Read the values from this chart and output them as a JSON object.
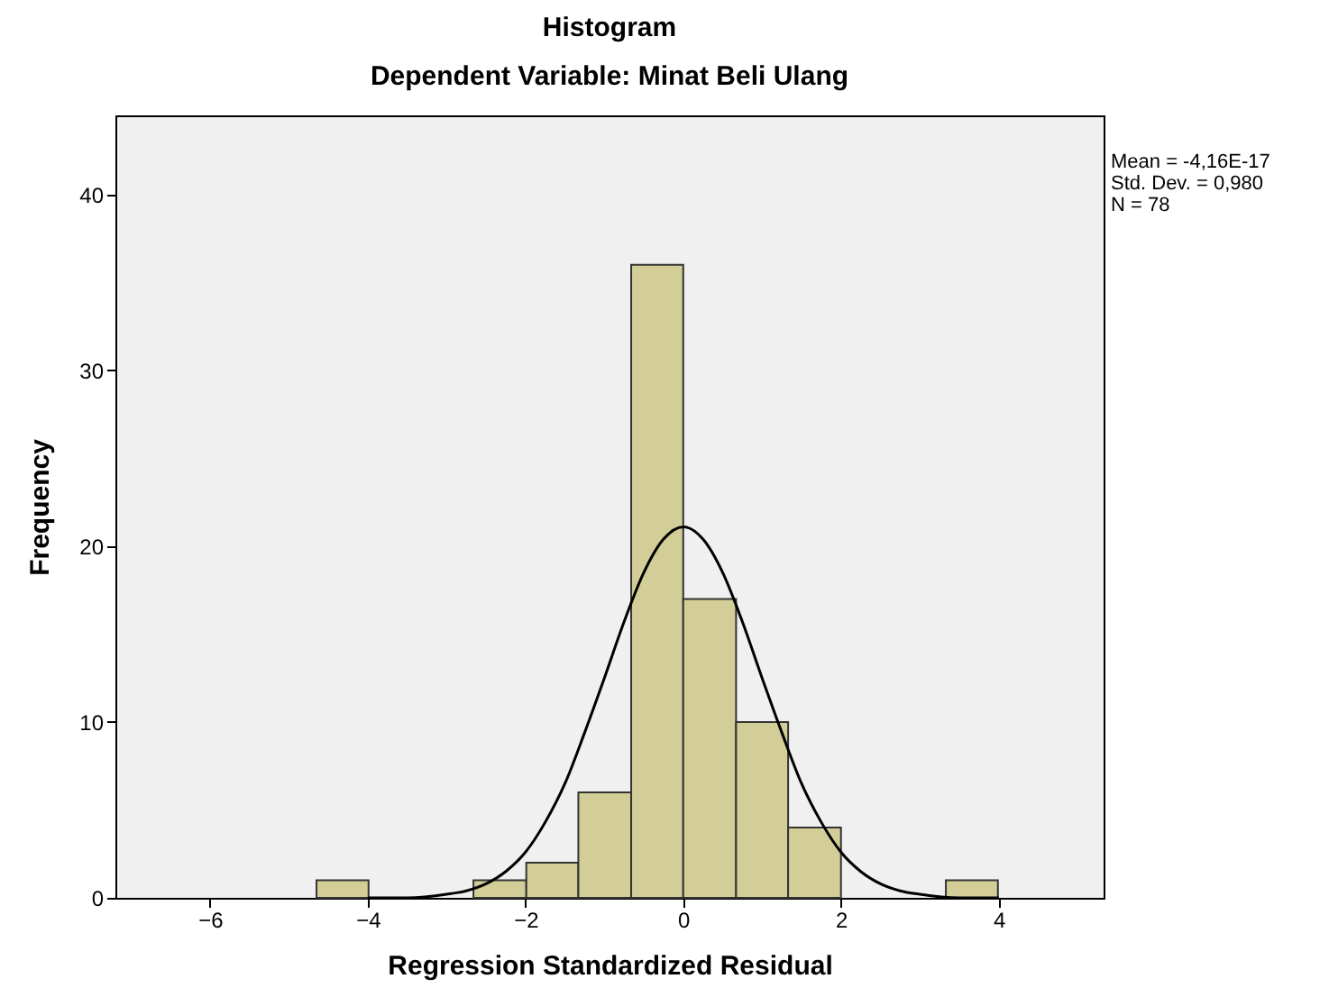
{
  "chart_data": {
    "type": "histogram",
    "title": "Histogram",
    "subtitle": "Dependent Variable: Minat Beli Ulang",
    "xlabel": "Regression Standardized Residual",
    "ylabel": "Frequency",
    "annotations": [
      "Mean = -4,16E-17",
      "Std. Dev. = 0,980",
      "N = 78"
    ],
    "bins": [
      -4.65,
      -3.99,
      -2.66,
      -1.99,
      -1.33,
      -0.66,
      0.0,
      0.67,
      1.33,
      2.0,
      3.33,
      3.99
    ],
    "values": [
      1,
      0,
      1,
      2,
      6,
      36,
      17,
      10,
      4,
      0,
      1
    ],
    "color": "#d3ce97",
    "series": [
      {
        "type": "line",
        "color": "#000000",
        "x": [
          -4,
          -3.5,
          -3,
          -2.75,
          -2.5,
          -2.25,
          -2,
          -1.75,
          -1.5,
          -1.25,
          -1,
          -0.75,
          -0.5,
          -0.25,
          0,
          0.25,
          0.5,
          0.75,
          1,
          1.25,
          1.5,
          1.75,
          2,
          2.25,
          2.5,
          2.75,
          3,
          3.5,
          4
        ],
        "values": [
          0,
          0,
          0.2,
          0.4,
          0.8,
          1.5,
          2.6,
          4.3,
          6.5,
          9.4,
          12.5,
          15.7,
          18.5,
          20.4,
          21.1,
          20.4,
          18.5,
          15.7,
          12.5,
          9.4,
          6.5,
          4.3,
          2.6,
          1.5,
          0.8,
          0.4,
          0.2,
          0,
          0
        ]
      }
    ],
    "xlim": [
      -7.2,
      5.33
    ],
    "xticks": [
      -6,
      -4,
      -2,
      0,
      2,
      4
    ],
    "ylim": [
      0,
      44.5
    ],
    "yticks": [
      0,
      10,
      20,
      30,
      40
    ],
    "grid": false
  }
}
